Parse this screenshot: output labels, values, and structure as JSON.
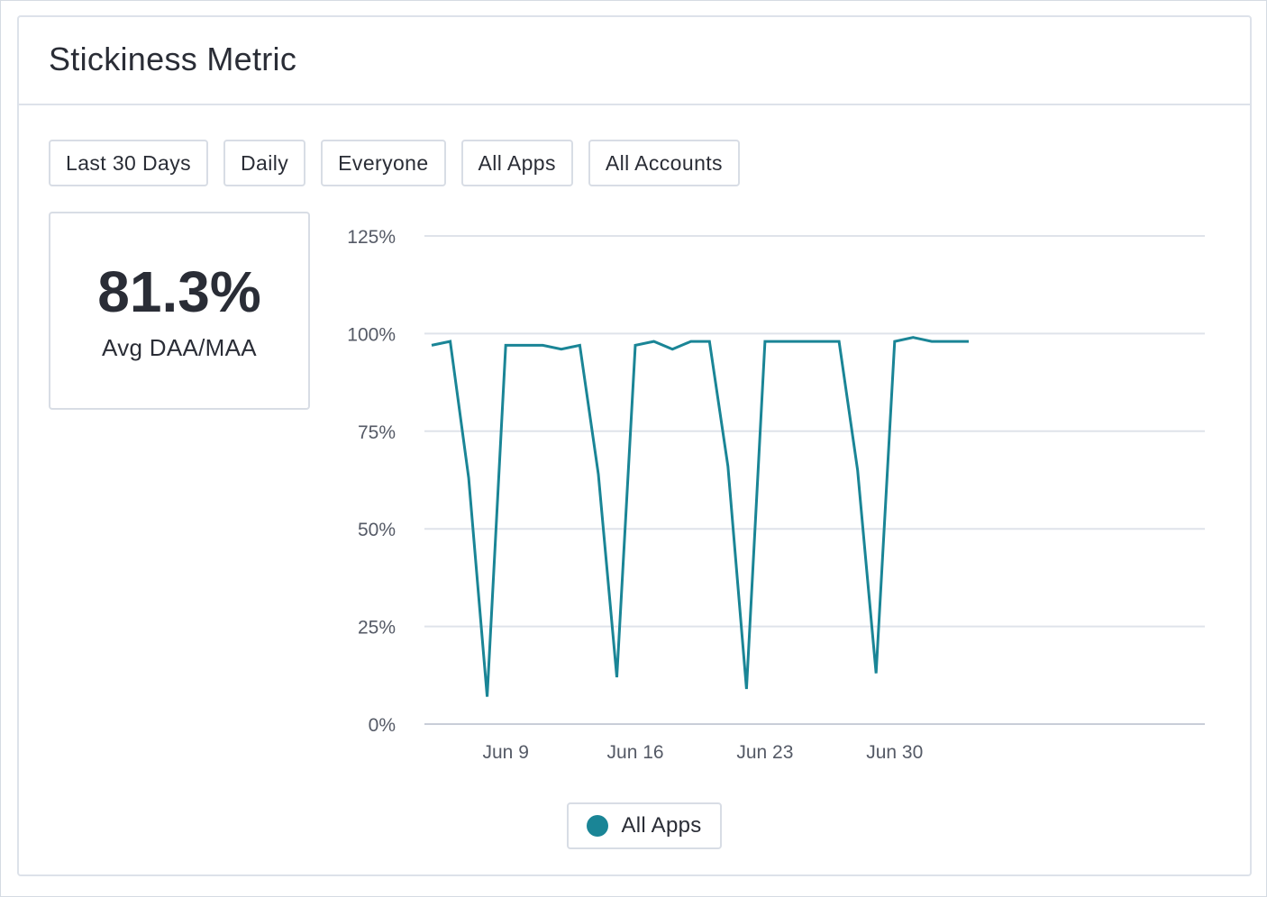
{
  "card": {
    "title": "Stickiness Metric"
  },
  "filters": [
    "Last 30 Days",
    "Daily",
    "Everyone",
    "All Apps",
    "All Accounts"
  ],
  "kpi": {
    "value": "81.3%",
    "label": "Avg DAA/MAA"
  },
  "legend": {
    "label": "All Apps",
    "color": "#1a8596"
  },
  "chart_data": {
    "type": "line",
    "ylim": [
      0,
      125
    ],
    "yticks": [
      "0%",
      "25%",
      "50%",
      "75%",
      "100%",
      "125%"
    ],
    "ytick_values": [
      0,
      25,
      50,
      75,
      100,
      125
    ],
    "xticks": [
      "Jun 9",
      "Jun 16",
      "Jun 23",
      "Jun 30"
    ],
    "xtick_days": [
      9,
      16,
      23,
      30
    ],
    "grid": true,
    "legend_position": "bottom-center",
    "x": [
      "Jun 5",
      "Jun 6",
      "Jun 7",
      "Jun 8",
      "Jun 9",
      "Jun 10",
      "Jun 11",
      "Jun 12",
      "Jun 13",
      "Jun 14",
      "Jun 15",
      "Jun 16",
      "Jun 17",
      "Jun 18",
      "Jun 19",
      "Jun 20",
      "Jun 21",
      "Jun 22",
      "Jun 23",
      "Jun 24",
      "Jun 25",
      "Jun 26",
      "Jun 27",
      "Jun 28",
      "Jun 29",
      "Jun 30",
      "Jul 1",
      "Jul 2",
      "Jul 3",
      "Jul 4"
    ],
    "series": [
      {
        "name": "All Apps",
        "color": "#1a8596",
        "values": [
          97,
          98,
          63,
          7,
          97,
          97,
          97,
          96,
          97,
          64,
          12,
          97,
          98,
          96,
          98,
          98,
          66,
          9,
          98,
          98,
          98,
          98,
          98,
          65,
          13,
          98,
          99,
          98,
          98,
          98
        ]
      }
    ]
  }
}
